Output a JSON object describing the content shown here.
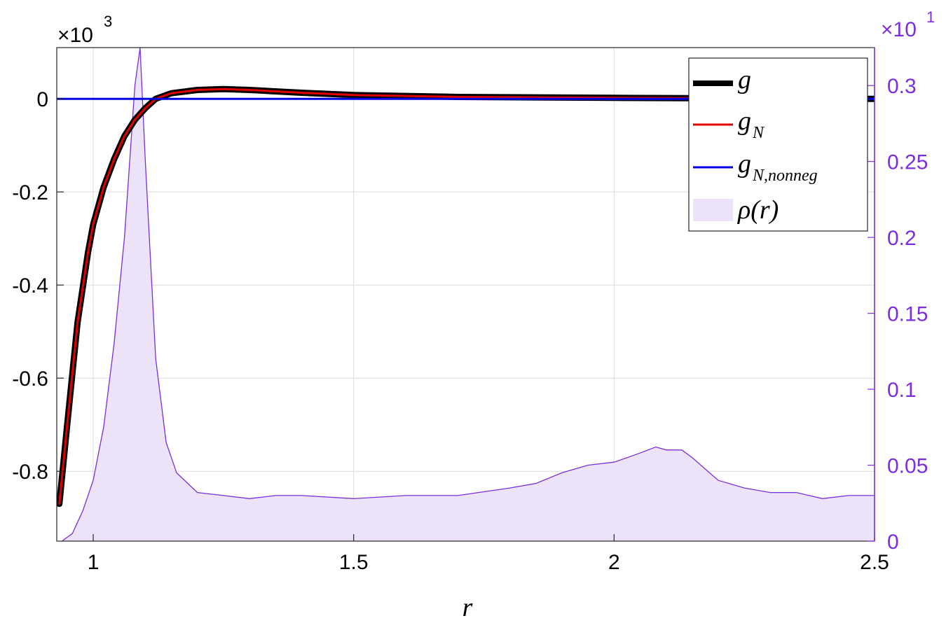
{
  "chart_data": {
    "type": "line",
    "title": "",
    "xlabel": "r",
    "x_ticks": [
      "1",
      "1.5",
      "2",
      "2.5"
    ],
    "xlim": [
      0.93,
      2.5
    ],
    "y_left": {
      "exponent_label": "×10",
      "exponent_power": "3",
      "ticks": [
        0,
        -0.2,
        -0.4,
        -0.6,
        -0.8
      ],
      "tick_labels": [
        "0",
        "-0.2",
        "-0.4",
        "-0.6",
        "-0.8"
      ],
      "lim": [
        -0.95,
        0.11
      ]
    },
    "y_right": {
      "exponent_label": "×10",
      "exponent_power": "1",
      "ticks": [
        0,
        0.05,
        0.1,
        0.15,
        0.2,
        0.25,
        0.3
      ],
      "tick_labels": [
        "0",
        "0.05",
        "0.1",
        "0.15",
        "0.2",
        "0.25",
        "0.3"
      ],
      "lim": [
        0,
        0.325
      ],
      "color": "#7A2EE0"
    },
    "grid": true,
    "legend_position": "top-right",
    "legend": [
      {
        "label": "g",
        "sub": "",
        "style": "thick-line",
        "color": "#000000"
      },
      {
        "label": "g",
        "sub": "N",
        "style": "line",
        "color": "#E00000"
      },
      {
        "label": "g",
        "sub": "N,nonneg",
        "style": "line",
        "color": "#0000E6"
      },
      {
        "label": "ρ(r)",
        "sub": "",
        "style": "area",
        "color": "#EDE3F8"
      }
    ],
    "series": [
      {
        "name": "g",
        "color": "#000000",
        "axis": "left",
        "x": [
          0.935,
          0.95,
          0.97,
          0.99,
          1.0,
          1.02,
          1.04,
          1.06,
          1.08,
          1.1,
          1.12,
          1.15,
          1.2,
          1.25,
          1.3,
          1.4,
          1.5,
          1.7,
          2.0,
          2.3,
          2.5
        ],
        "y": [
          -0.87,
          -0.7,
          -0.48,
          -0.33,
          -0.27,
          -0.19,
          -0.13,
          -0.08,
          -0.045,
          -0.02,
          0.0,
          0.012,
          0.019,
          0.021,
          0.019,
          0.013,
          0.008,
          0.004,
          0.002,
          0.0005,
          0.0
        ]
      },
      {
        "name": "g_N",
        "color": "#E00000",
        "axis": "left",
        "x": [
          0.935,
          0.95,
          0.97,
          0.99,
          1.0,
          1.02,
          1.04,
          1.06,
          1.08,
          1.1,
          1.12,
          1.15,
          1.2,
          1.25,
          1.3,
          1.4,
          1.5,
          1.7,
          2.0,
          2.3,
          2.5
        ],
        "y": [
          -0.87,
          -0.7,
          -0.48,
          -0.33,
          -0.27,
          -0.19,
          -0.13,
          -0.08,
          -0.045,
          -0.02,
          0.0,
          0.012,
          0.019,
          0.021,
          0.019,
          0.013,
          0.008,
          0.004,
          0.002,
          0.0005,
          0.0
        ]
      },
      {
        "name": "g_N,nonneg",
        "color": "#0000E6",
        "axis": "left",
        "x": [
          0.93,
          2.5
        ],
        "y": [
          0.0,
          0.0
        ]
      },
      {
        "name": "ρ(r)",
        "color": "#7A2EE0",
        "fill": "#EDE3F8",
        "axis": "right",
        "x": [
          0.94,
          0.96,
          0.98,
          1.0,
          1.02,
          1.04,
          1.06,
          1.08,
          1.09,
          1.1,
          1.12,
          1.14,
          1.16,
          1.2,
          1.25,
          1.3,
          1.35,
          1.4,
          1.5,
          1.6,
          1.7,
          1.8,
          1.85,
          1.9,
          1.95,
          2.0,
          2.05,
          2.08,
          2.1,
          2.13,
          2.15,
          2.2,
          2.25,
          2.3,
          2.35,
          2.4,
          2.45,
          2.5
        ],
        "y": [
          0.0,
          0.005,
          0.02,
          0.04,
          0.075,
          0.13,
          0.2,
          0.3,
          0.325,
          0.25,
          0.12,
          0.065,
          0.045,
          0.032,
          0.03,
          0.028,
          0.03,
          0.03,
          0.028,
          0.03,
          0.03,
          0.035,
          0.038,
          0.045,
          0.05,
          0.052,
          0.058,
          0.062,
          0.06,
          0.06,
          0.055,
          0.04,
          0.035,
          0.032,
          0.032,
          0.028,
          0.03,
          0.03
        ]
      }
    ]
  }
}
